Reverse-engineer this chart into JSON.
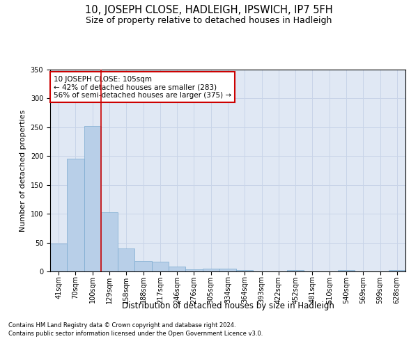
{
  "title": "10, JOSEPH CLOSE, HADLEIGH, IPSWICH, IP7 5FH",
  "subtitle": "Size of property relative to detached houses in Hadleigh",
  "xlabel": "Distribution of detached houses by size in Hadleigh",
  "ylabel": "Number of detached properties",
  "footnote1": "Contains HM Land Registry data © Crown copyright and database right 2024.",
  "footnote2": "Contains public sector information licensed under the Open Government Licence v3.0.",
  "categories": [
    "41sqm",
    "70sqm",
    "100sqm",
    "129sqm",
    "158sqm",
    "188sqm",
    "217sqm",
    "246sqm",
    "276sqm",
    "305sqm",
    "334sqm",
    "364sqm",
    "393sqm",
    "422sqm",
    "452sqm",
    "481sqm",
    "510sqm",
    "540sqm",
    "569sqm",
    "599sqm",
    "628sqm"
  ],
  "values": [
    48,
    196,
    252,
    102,
    40,
    18,
    17,
    9,
    4,
    5,
    5,
    2,
    0,
    0,
    2,
    0,
    0,
    3,
    0,
    0,
    3
  ],
  "bar_color": "#b8cfe8",
  "bar_edge_color": "#7aaad0",
  "bar_edge_width": 0.5,
  "property_line_x": 2.5,
  "property_sqm": 105,
  "annotation_line1": "10 JOSEPH CLOSE: 105sqm",
  "annotation_line2": "← 42% of detached houses are smaller (283)",
  "annotation_line3": "56% of semi-detached houses are larger (375) →",
  "annotation_box_color": "white",
  "annotation_box_edge_color": "#cc0000",
  "red_line_color": "#cc0000",
  "grid_color": "#c8d4e8",
  "background_color": "#e0e8f4",
  "ylim": [
    0,
    350
  ],
  "yticks": [
    0,
    50,
    100,
    150,
    200,
    250,
    300,
    350
  ],
  "title_fontsize": 10.5,
  "subtitle_fontsize": 9,
  "xlabel_fontsize": 8.5,
  "ylabel_fontsize": 8,
  "tick_fontsize": 7,
  "annotation_fontsize": 7.5,
  "footnote_fontsize": 6
}
